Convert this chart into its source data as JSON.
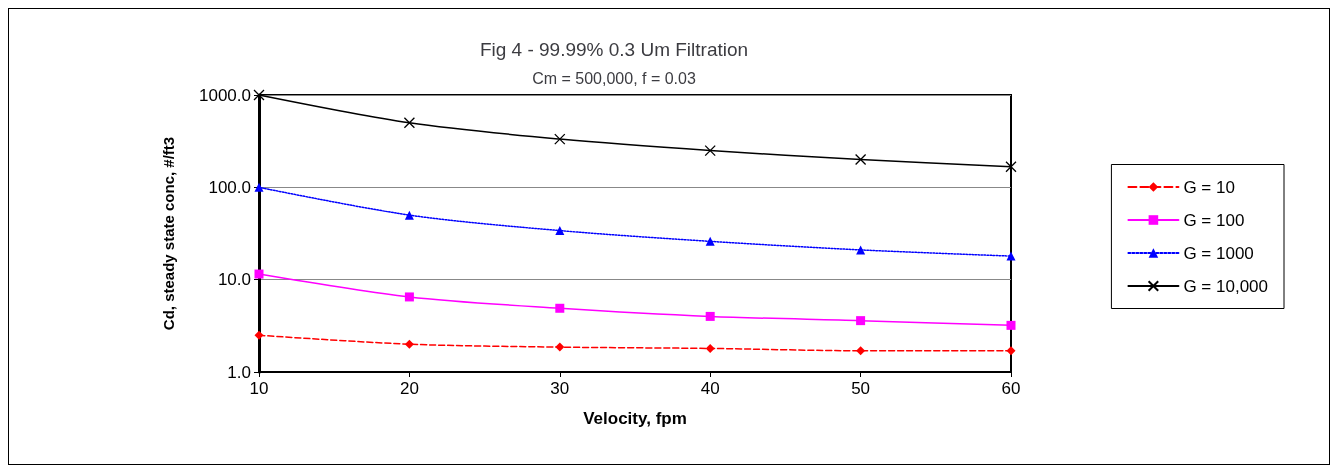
{
  "chart_data": {
    "type": "line",
    "title": "Fig 4 - 99.99% 0.3 Um Filtration",
    "subtitle": "Cm = 500,000, f = 0.03",
    "xlabel": "Velocity, fpm",
    "ylabel": "Cd, steady state conc, #/ft3",
    "x": [
      10,
      20,
      30,
      40,
      50,
      60
    ],
    "series": [
      {
        "name": "G = 10",
        "color": "#ff0000",
        "marker": "diamond",
        "line_style": "dashed",
        "values": [
          2.5,
          2.0,
          1.86,
          1.8,
          1.7,
          1.7
        ]
      },
      {
        "name": "G = 100",
        "color": "#ff00ff",
        "marker": "square",
        "line_style": "solid",
        "values": [
          11.5,
          6.5,
          4.9,
          4.0,
          3.6,
          3.2
        ]
      },
      {
        "name": "G = 1000",
        "color": "#0000ff",
        "marker": "triangle",
        "line_style": "dotted",
        "values": [
          100,
          50,
          34,
          26,
          21,
          18
        ]
      },
      {
        "name": "G = 10,000",
        "color": "#000000",
        "marker": "cross",
        "line_style": "solid",
        "values": [
          1000,
          500,
          333,
          250,
          200,
          167
        ]
      }
    ],
    "log": "y",
    "xlim": [
      10,
      60
    ],
    "xticks": [
      10,
      20,
      30,
      40,
      50,
      60
    ],
    "ylim": [
      1,
      1000
    ],
    "yticks": [
      {
        "value": 1,
        "label": "1.0"
      },
      {
        "value": 10,
        "label": "10.0"
      },
      {
        "value": 100,
        "label": "100.0"
      },
      {
        "value": 1000,
        "label": "1000.0"
      }
    ],
    "grid": "y",
    "legend": "right"
  }
}
